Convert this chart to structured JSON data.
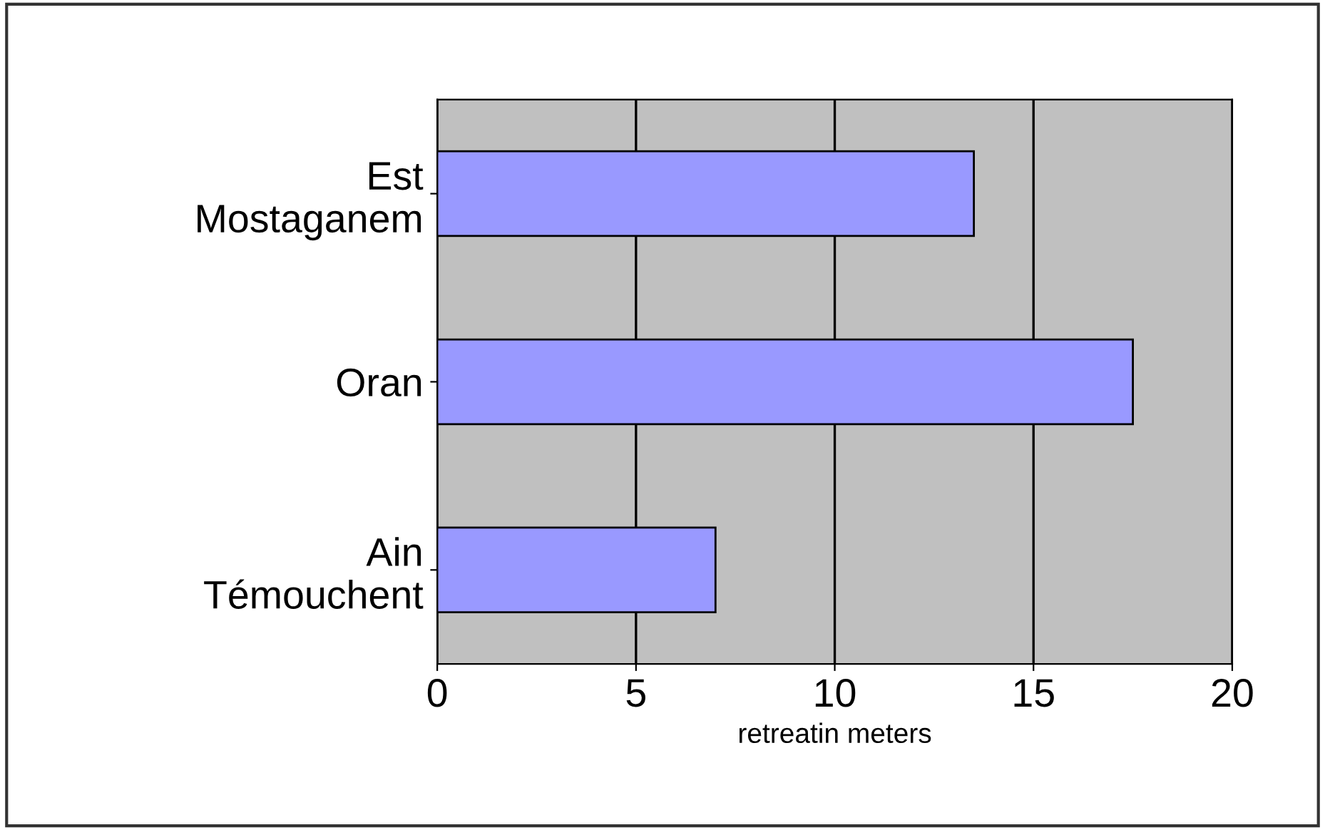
{
  "chart_data": {
    "type": "bar",
    "orientation": "horizontal",
    "categories": [
      "Est\nMostaganem",
      "Oran",
      "Ain\nTémouchent"
    ],
    "values": [
      13.5,
      17.5,
      7
    ],
    "color": "#9999ff",
    "xlim": [
      0,
      20
    ],
    "xticks": [
      0,
      5,
      10,
      15,
      20
    ],
    "xlabel": "retreatin meters",
    "grid": "x",
    "legend": false
  }
}
